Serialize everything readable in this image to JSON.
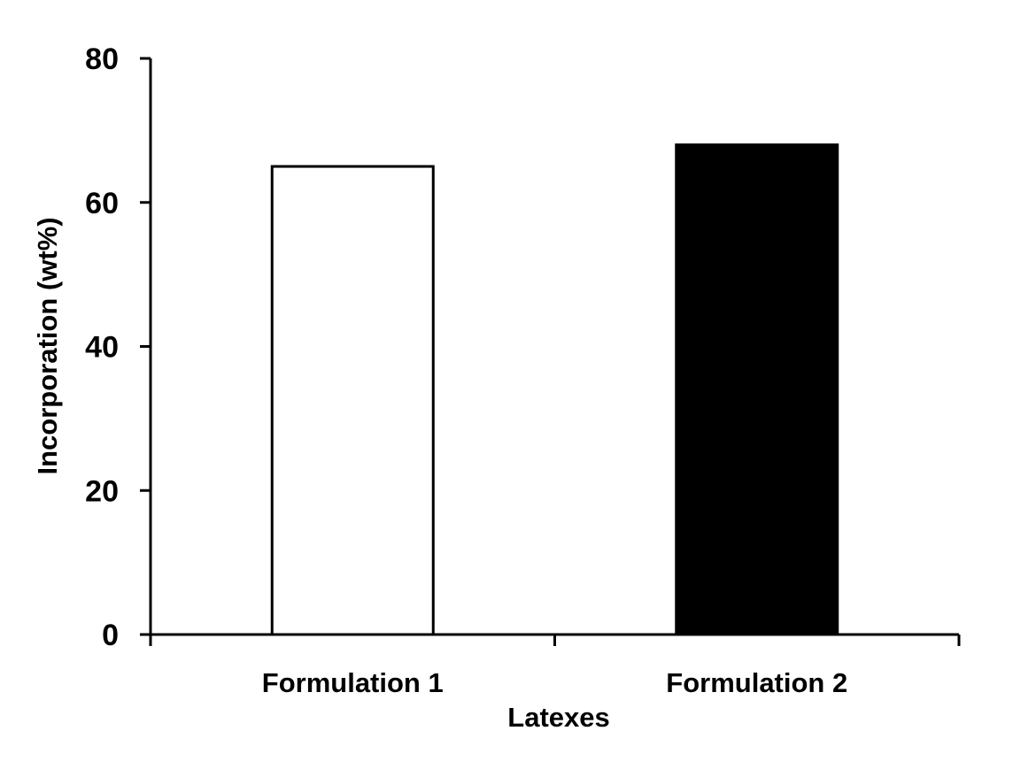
{
  "chart_data": {
    "type": "bar",
    "categories": [
      "Formulation 1",
      "Formulation 2"
    ],
    "values": [
      65,
      68
    ],
    "bar_colors": [
      "#ffffff",
      "#000000"
    ],
    "bar_edge_color": "#000000",
    "xlabel": "Latexes",
    "ylabel": "Incorporation (wt%)",
    "ylim": [
      0,
      80
    ],
    "yticks": [
      0,
      20,
      40,
      60,
      80
    ],
    "grid": false,
    "legend": "none"
  }
}
